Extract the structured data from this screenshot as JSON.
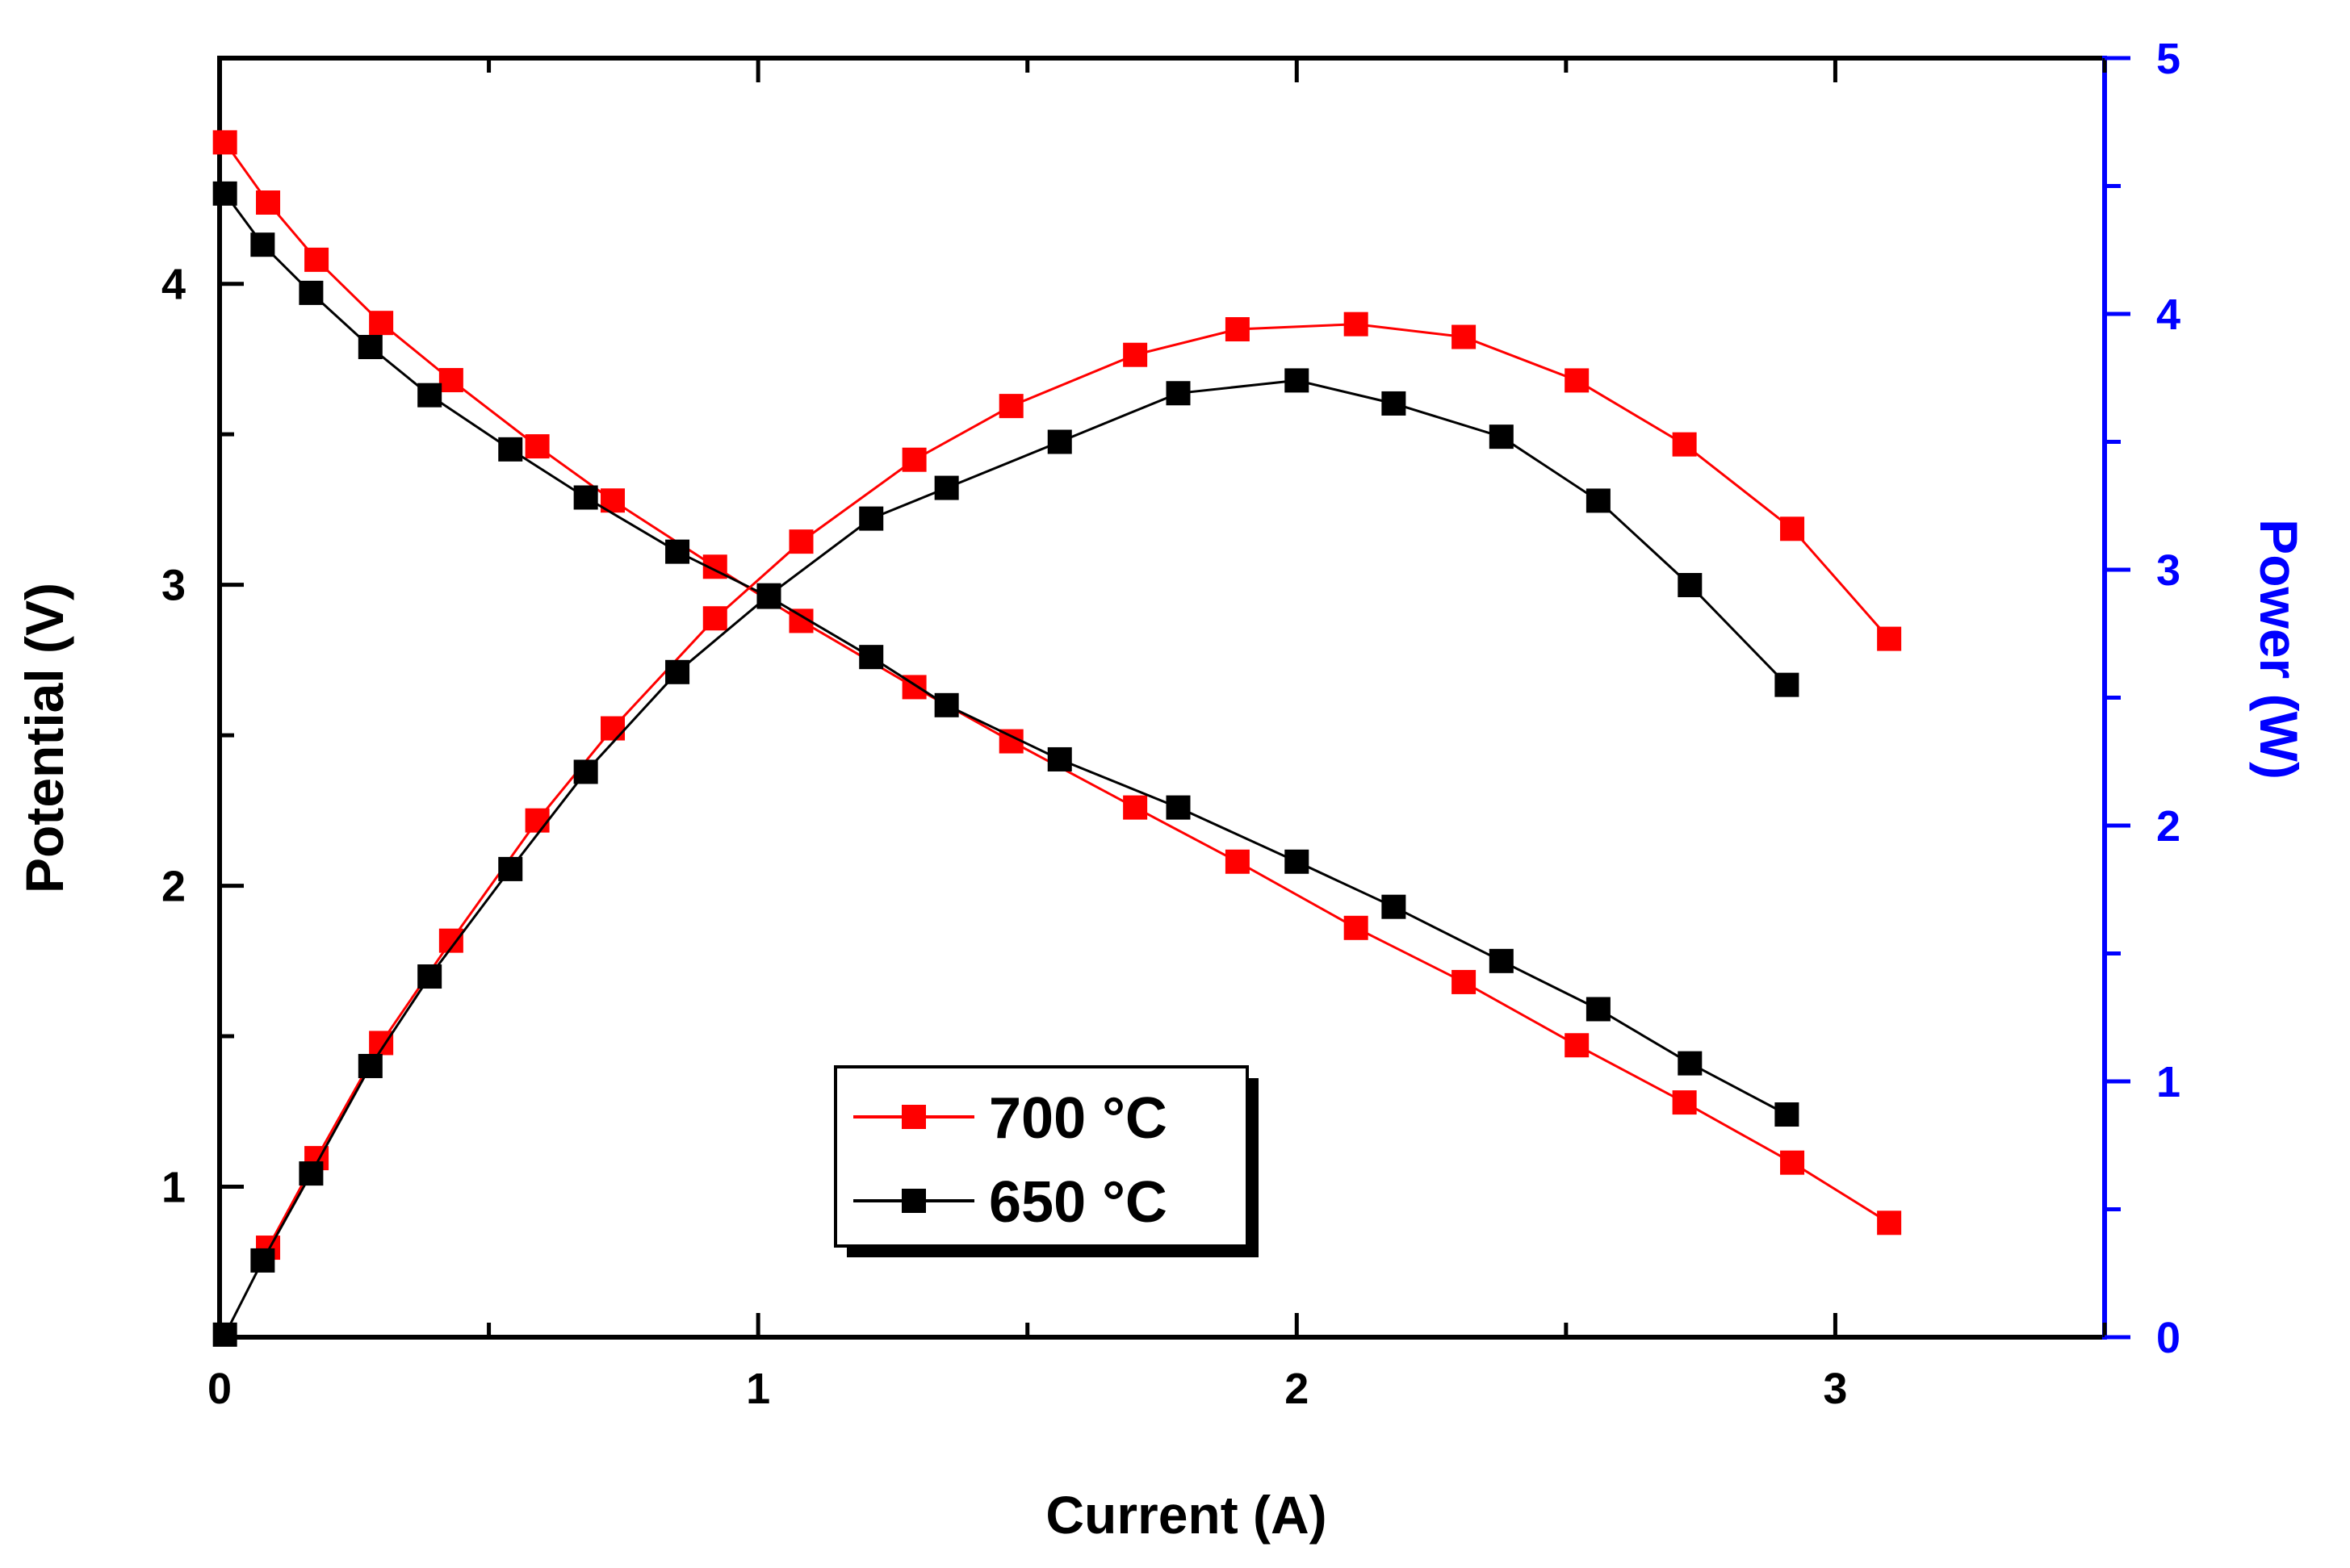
{
  "chart_data": {
    "type": "line",
    "title": "",
    "xlabel": "Current (A)",
    "ylabel_left": "Potential (V)",
    "ylabel_right": "Power (W)",
    "xlim": [
      0,
      3.5
    ],
    "ylim_left": [
      0.5,
      4.75
    ],
    "ylim_right": [
      0,
      5
    ],
    "x_ticks": [
      0,
      1,
      2,
      3
    ],
    "x_tick_labels": [
      "0",
      "1",
      "2",
      "3"
    ],
    "y_left_ticks": [
      1,
      2,
      3,
      4
    ],
    "y_left_tick_labels": [
      "1",
      "2",
      "3",
      "4"
    ],
    "y_right_ticks": [
      0,
      1,
      2,
      3,
      4,
      5
    ],
    "y_right_tick_labels": [
      "0",
      "1",
      "2",
      "3",
      "4",
      "5"
    ],
    "right_axis_color": "#0000ff",
    "legend_position": "bottom-center",
    "series": [
      {
        "name": "700 °C",
        "quantity": "potential",
        "axis": "left",
        "color": "#ff0000",
        "x": [
          0.01,
          0.09,
          0.18,
          0.3,
          0.43,
          0.59,
          0.73,
          0.92,
          1.08,
          1.29,
          1.47,
          1.7,
          1.89,
          2.11,
          2.31,
          2.52,
          2.72,
          2.92,
          3.1
        ],
        "y": [
          4.47,
          4.27,
          4.08,
          3.87,
          3.68,
          3.46,
          3.28,
          3.06,
          2.88,
          2.66,
          2.48,
          2.26,
          2.08,
          1.86,
          1.68,
          1.47,
          1.28,
          1.08,
          0.88
        ]
      },
      {
        "name": "650 °C",
        "quantity": "potential",
        "axis": "left",
        "color": "#000000",
        "x": [
          0.01,
          0.08,
          0.17,
          0.28,
          0.39,
          0.54,
          0.68,
          0.85,
          1.02,
          1.21,
          1.35,
          1.56,
          1.78,
          2.0,
          2.18,
          2.38,
          2.56,
          2.73,
          2.91
        ],
        "y": [
          4.3,
          4.13,
          3.97,
          3.79,
          3.63,
          3.45,
          3.29,
          3.11,
          2.96,
          2.76,
          2.6,
          2.42,
          2.26,
          2.08,
          1.93,
          1.75,
          1.59,
          1.41,
          1.24
        ]
      },
      {
        "name": "700 °C",
        "quantity": "power",
        "axis": "right",
        "color": "#ff0000",
        "x": [
          0.09,
          0.18,
          0.3,
          0.43,
          0.59,
          0.73,
          0.92,
          1.08,
          1.29,
          1.47,
          1.7,
          1.89,
          2.11,
          2.31,
          2.52,
          2.72,
          2.92,
          3.1
        ],
        "y": [
          0.35,
          0.7,
          1.15,
          1.55,
          2.02,
          2.38,
          2.81,
          3.11,
          3.43,
          3.64,
          3.84,
          3.94,
          3.96,
          3.91,
          3.74,
          3.49,
          3.16,
          2.73
        ]
      },
      {
        "name": "650 °C",
        "quantity": "power",
        "axis": "right",
        "color": "#000000",
        "x": [
          0.01,
          0.08,
          0.17,
          0.28,
          0.39,
          0.54,
          0.68,
          0.85,
          1.02,
          1.21,
          1.35,
          1.56,
          1.78,
          2.0,
          2.18,
          2.38,
          2.56,
          2.73,
          2.91
        ],
        "y": [
          0.01,
          0.3,
          0.64,
          1.06,
          1.41,
          1.83,
          2.21,
          2.6,
          2.9,
          3.2,
          3.32,
          3.5,
          3.69,
          3.74,
          3.65,
          3.52,
          3.27,
          2.94,
          2.55
        ]
      }
    ],
    "legend": [
      {
        "label": "700 °C",
        "color": "#ff0000"
      },
      {
        "label": "650 °C",
        "color": "#000000"
      }
    ]
  }
}
